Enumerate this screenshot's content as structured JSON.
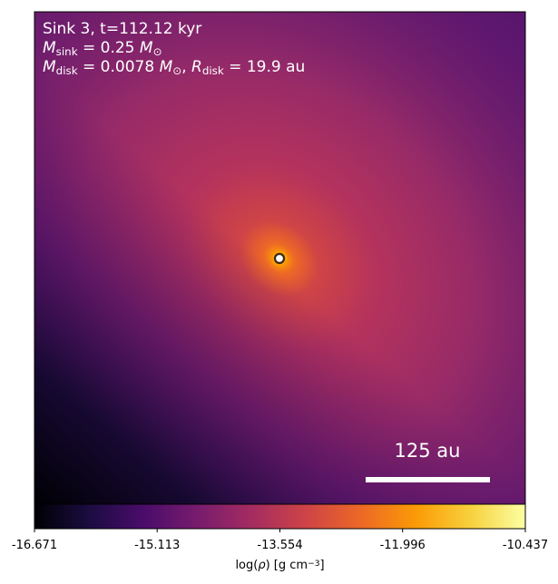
{
  "chart_data": {
    "type": "density-map",
    "colormap": "inferno",
    "annotations": [
      [
        {
          "text": "Sink 3, t=112.12 kyr"
        }
      ],
      [
        {
          "italic": "M"
        },
        {
          "sub": "sink"
        },
        {
          "text": " = 0.25 "
        },
        {
          "italic": "M"
        },
        {
          "sub": "⊙"
        }
      ],
      [
        {
          "italic": "M"
        },
        {
          "sub": "disk"
        },
        {
          "text": " = 0.0078 "
        },
        {
          "italic": "M"
        },
        {
          "sub": "⊙"
        },
        {
          "text": ", "
        },
        {
          "italic": "R"
        },
        {
          "sub": "disk"
        },
        {
          "text": " = 19.9 au"
        }
      ]
    ],
    "scale_bar_label": "125 au",
    "colorbar": {
      "clim": [
        -16.671,
        -10.437
      ],
      "ticks": [
        -16.671,
        -15.113,
        -13.554,
        -11.996,
        -10.437
      ],
      "label": [
        {
          "text": "log("
        },
        {
          "italic": "ρ"
        },
        {
          "text": ") [g cm"
        },
        {
          "sup": "−3"
        },
        {
          "text": "]"
        }
      ]
    }
  }
}
